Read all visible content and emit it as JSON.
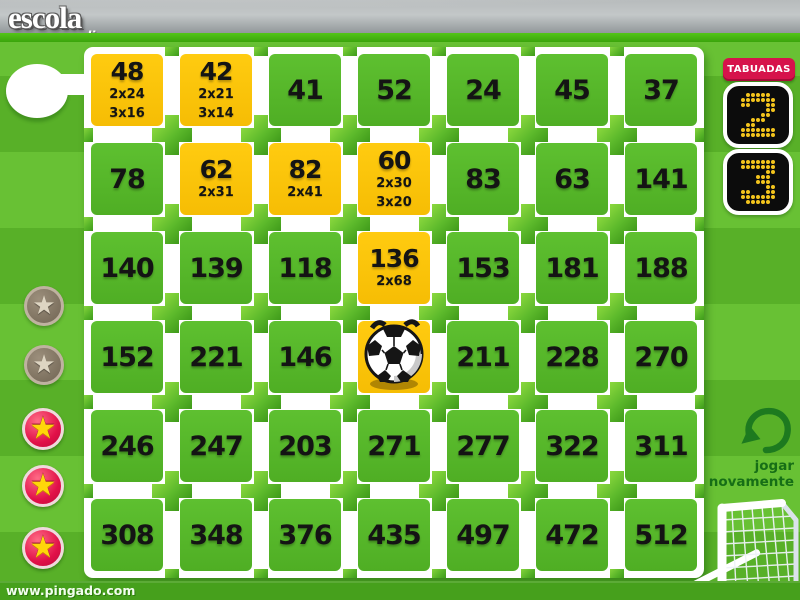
{
  "header": {
    "logo": "escola",
    "logo_sub": "on-line"
  },
  "tabuadas": {
    "label": "TABUADAS",
    "numbers": [
      "2",
      "3"
    ]
  },
  "play_again": {
    "line1": "jogar",
    "line2": "novamente"
  },
  "footer": {
    "url": "www.pingado.com"
  },
  "markers": {
    "badges": [
      {
        "state": "inactive",
        "icon": "star"
      },
      {
        "state": "inactive",
        "icon": "star"
      },
      {
        "state": "active",
        "icon": "star"
      },
      {
        "state": "active",
        "icon": "star"
      },
      {
        "state": "active",
        "icon": "star"
      }
    ]
  },
  "board": {
    "rows": [
      {
        "cells": [
          {
            "value": "48",
            "highlight": true,
            "factors": [
              "2x24",
              "3x16"
            ]
          },
          {
            "value": "42",
            "highlight": true,
            "factors": [
              "2x21",
              "3x14"
            ]
          },
          {
            "value": "41"
          },
          {
            "value": "52"
          },
          {
            "value": "24"
          },
          {
            "value": "45"
          },
          {
            "value": "37"
          }
        ]
      },
      {
        "cells": [
          {
            "value": "78"
          },
          {
            "value": "62",
            "highlight": true,
            "factors": [
              "2x31"
            ]
          },
          {
            "value": "82",
            "highlight": true,
            "factors": [
              "2x41"
            ]
          },
          {
            "value": "60",
            "highlight": true,
            "factors": [
              "2x30",
              "3x20"
            ]
          },
          {
            "value": "83"
          },
          {
            "value": "63"
          },
          {
            "value": "141"
          }
        ]
      },
      {
        "cells": [
          {
            "value": "140"
          },
          {
            "value": "139"
          },
          {
            "value": "118"
          },
          {
            "value": "136",
            "highlight": true,
            "factors": [
              "2x68"
            ]
          },
          {
            "value": "153"
          },
          {
            "value": "181"
          },
          {
            "value": "188"
          }
        ]
      },
      {
        "cells": [
          {
            "value": "152"
          },
          {
            "value": "221"
          },
          {
            "value": "146"
          },
          {
            "value": "",
            "highlight": true,
            "ball": true
          },
          {
            "value": "211"
          },
          {
            "value": "228"
          },
          {
            "value": "270"
          }
        ]
      },
      {
        "cells": [
          {
            "value": "246"
          },
          {
            "value": "247"
          },
          {
            "value": "203"
          },
          {
            "value": "271"
          },
          {
            "value": "277"
          },
          {
            "value": "322"
          },
          {
            "value": "311"
          }
        ]
      },
      {
        "cells": [
          {
            "value": "308"
          },
          {
            "value": "348"
          },
          {
            "value": "376"
          },
          {
            "value": "435"
          },
          {
            "value": "497"
          },
          {
            "value": "472"
          },
          {
            "value": "512"
          }
        ]
      }
    ]
  },
  "colors": {
    "tile_green": "#55b52a",
    "tile_yellow": "#fcc408",
    "board_white": "#ffffff",
    "badge_red": "#e11048",
    "star_yellow": "#ffd60a",
    "tabuadas_red": "#d6134b",
    "digit_gold": "#f4c41d",
    "arrow_green": "#1d7a1f",
    "field_green": "#60b82e"
  }
}
